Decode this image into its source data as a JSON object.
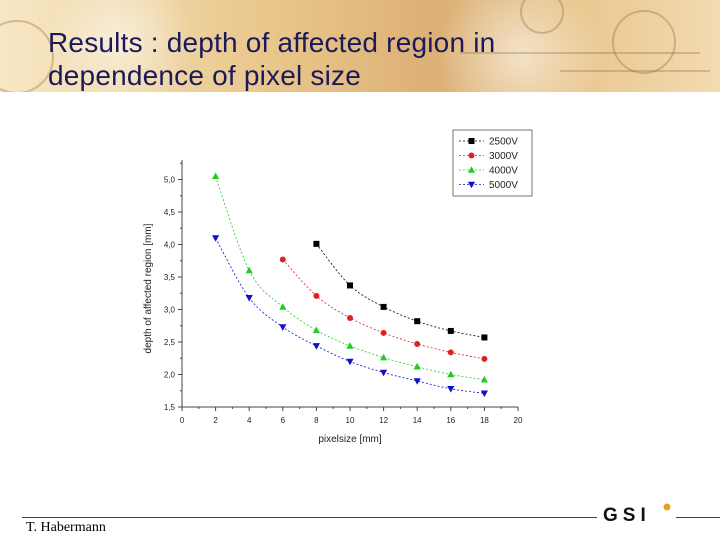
{
  "slide": {
    "title": "Results : depth of affected region in dependence of pixel size",
    "author": "T. Habermann",
    "logo_text": "GSI",
    "accent_title": "#1a1a5a"
  },
  "chart_data": {
    "type": "line",
    "title": "",
    "xlabel": "pixelsize [mm]",
    "ylabel": "depth of affected region [mm]",
    "xlim": [
      0,
      20
    ],
    "ylim": [
      1.5,
      5.3
    ],
    "xticks": [
      "0",
      "2",
      "4",
      "6",
      "8",
      "10",
      "12",
      "14",
      "16",
      "18",
      "20"
    ],
    "yticks": [
      "1,5",
      "2,0",
      "2,5",
      "3,0",
      "3,5",
      "4,0",
      "4,5",
      "5,0"
    ],
    "grid": false,
    "legend_position": "top-right",
    "series": [
      {
        "name": "2500V",
        "color": "#000000",
        "marker": "square",
        "x": [
          8,
          10,
          12,
          14,
          16,
          18
        ],
        "y": [
          4.01,
          3.37,
          3.04,
          2.82,
          2.67,
          2.57
        ]
      },
      {
        "name": "3000V",
        "color": "#dd2222",
        "marker": "circle",
        "x": [
          6,
          8,
          10,
          12,
          14,
          16,
          18
        ],
        "y": [
          3.77,
          3.21,
          2.87,
          2.64,
          2.47,
          2.34,
          2.24
        ]
      },
      {
        "name": "4000V",
        "color": "#22cc22",
        "marker": "triangle-up",
        "x": [
          2,
          4,
          6,
          8,
          10,
          12,
          14,
          16,
          18
        ],
        "y": [
          5.05,
          3.6,
          3.04,
          2.68,
          2.44,
          2.26,
          2.12,
          2.0,
          1.92
        ]
      },
      {
        "name": "5000V",
        "color": "#1111cc",
        "marker": "triangle-down",
        "x": [
          2,
          4,
          6,
          8,
          10,
          12,
          14,
          16,
          18
        ],
        "y": [
          4.1,
          3.18,
          2.73,
          2.44,
          2.2,
          2.03,
          1.9,
          1.78,
          1.71
        ]
      }
    ]
  }
}
